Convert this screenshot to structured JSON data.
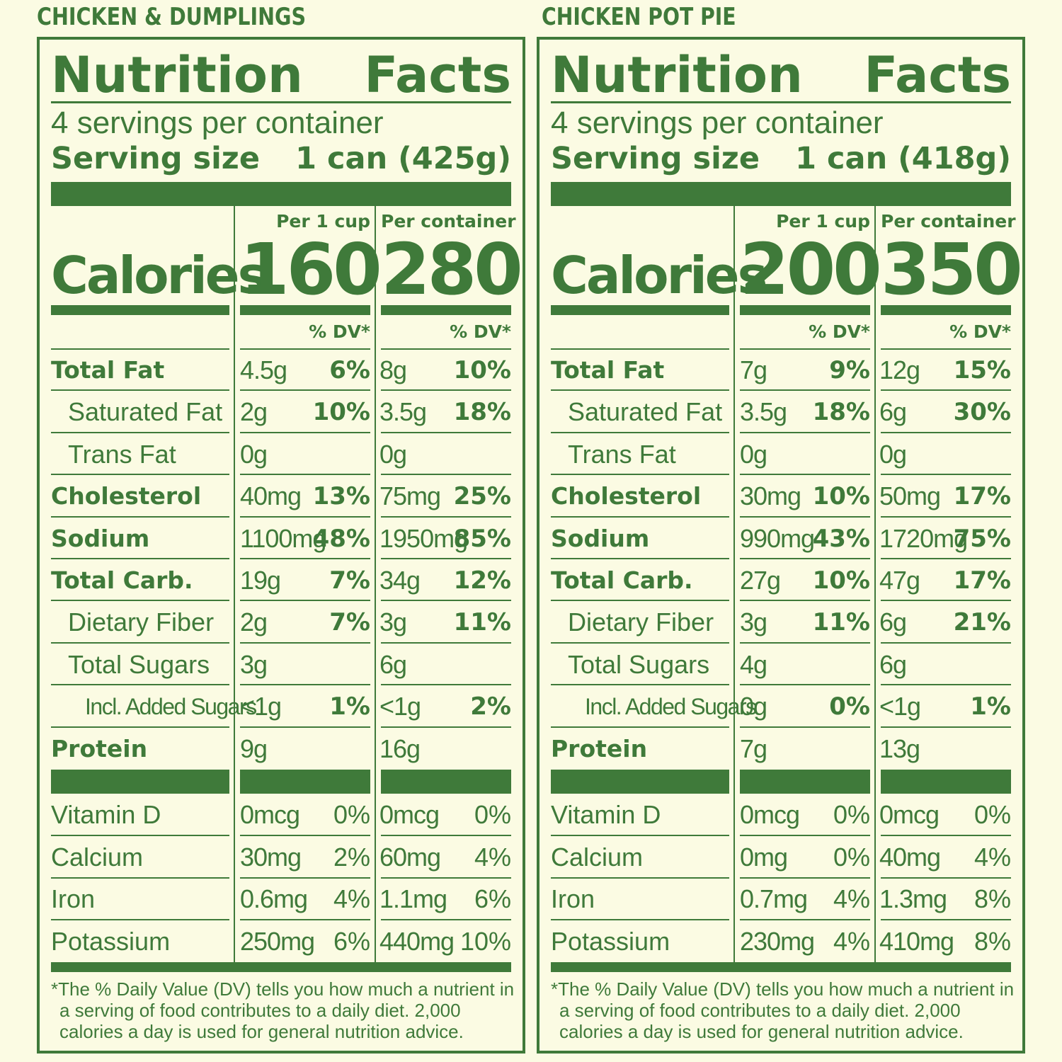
{
  "panels": [
    {
      "product": "CHICKEN & DUMPLINGS",
      "title": "Nutrition Facts",
      "servings": "4 servings per container",
      "serving_size_label": "Serving size",
      "serving_size_value": "1 can (425g)",
      "col1_head": "Per 1 cup",
      "col2_head": "Per container",
      "calories_label": "Calories",
      "calories_1": "160",
      "calories_2": "280",
      "dv_head": "% DV*",
      "rows": [
        {
          "label": "Total Fat",
          "style": "bold",
          "a1": "4.5g",
          "p1": "6%",
          "a2": "8g",
          "p2": "10%"
        },
        {
          "label": "Saturated Fat",
          "style": "ind1",
          "a1": "2g",
          "p1": "10%",
          "a2": "3.5g",
          "p2": "18%"
        },
        {
          "label": "Trans Fat",
          "style": "ind1",
          "a1": "0g",
          "p1": "",
          "a2": "0g",
          "p2": ""
        },
        {
          "label": "Cholesterol",
          "style": "bold",
          "a1": "40mg",
          "p1": "13%",
          "a2": "75mg",
          "p2": "25%"
        },
        {
          "label": "Sodium",
          "style": "bold",
          "a1": "1100mg",
          "p1": "48%",
          "a2": "1950mg",
          "p2": "85%"
        },
        {
          "label": "Total Carb.",
          "style": "bold",
          "a1": "19g",
          "p1": "7%",
          "a2": "34g",
          "p2": "12%"
        },
        {
          "label": "Dietary Fiber",
          "style": "ind1",
          "a1": "2g",
          "p1": "7%",
          "a2": "3g",
          "p2": "11%"
        },
        {
          "label": "Total Sugars",
          "style": "ind1",
          "a1": "3g",
          "p1": "",
          "a2": "6g",
          "p2": ""
        },
        {
          "label": "Incl. Added Sugars",
          "style": "ind2",
          "a1": "<1g",
          "p1": "1%",
          "a2": "<1g",
          "p2": "2%"
        },
        {
          "label": "Protein",
          "style": "bold",
          "a1": "9g",
          "p1": "",
          "a2": "16g",
          "p2": ""
        }
      ],
      "vitamins": [
        {
          "label": "Vitamin D",
          "a1": "0mcg",
          "p1": "0%",
          "a2": "0mcg",
          "p2": "0%"
        },
        {
          "label": "Calcium",
          "a1": "30mg",
          "p1": "2%",
          "a2": "60mg",
          "p2": "4%"
        },
        {
          "label": "Iron",
          "a1": "0.6mg",
          "p1": "4%",
          "a2": "1.1mg",
          "p2": "6%"
        },
        {
          "label": "Potassium",
          "a1": "250mg",
          "p1": "6%",
          "a2": "440mg",
          "p2": "10%"
        }
      ],
      "footnote": [
        "*The % Daily Value (DV) tells you how much a nutrient in",
        "a serving of food contributes to a daily diet. 2,000",
        "calories a day is used for general nutrition advice."
      ]
    },
    {
      "product": "CHICKEN POT PIE",
      "title": "Nutrition Facts",
      "servings": "4 servings per container",
      "serving_size_label": "Serving size",
      "serving_size_value": "1 can (418g)",
      "col1_head": "Per 1 cup",
      "col2_head": "Per container",
      "calories_label": "Calories",
      "calories_1": "200",
      "calories_2": "350",
      "dv_head": "% DV*",
      "rows": [
        {
          "label": "Total Fat",
          "style": "bold",
          "a1": "7g",
          "p1": "9%",
          "a2": "12g",
          "p2": "15%"
        },
        {
          "label": "Saturated Fat",
          "style": "ind1",
          "a1": "3.5g",
          "p1": "18%",
          "a2": "6g",
          "p2": "30%"
        },
        {
          "label": "Trans Fat",
          "style": "ind1",
          "a1": "0g",
          "p1": "",
          "a2": "0g",
          "p2": ""
        },
        {
          "label": "Cholesterol",
          "style": "bold",
          "a1": "30mg",
          "p1": "10%",
          "a2": "50mg",
          "p2": "17%"
        },
        {
          "label": "Sodium",
          "style": "bold",
          "a1": "990mg",
          "p1": "43%",
          "a2": "1720mg",
          "p2": "75%"
        },
        {
          "label": "Total Carb.",
          "style": "bold",
          "a1": "27g",
          "p1": "10%",
          "a2": "47g",
          "p2": "17%"
        },
        {
          "label": "Dietary Fiber",
          "style": "ind1",
          "a1": "3g",
          "p1": "11%",
          "a2": "6g",
          "p2": "21%"
        },
        {
          "label": "Total Sugars",
          "style": "ind1",
          "a1": "4g",
          "p1": "",
          "a2": "6g",
          "p2": ""
        },
        {
          "label": "Incl. Added Sugars",
          "style": "ind2",
          "a1": "0g",
          "p1": "0%",
          "a2": "<1g",
          "p2": "1%"
        },
        {
          "label": "Protein",
          "style": "bold",
          "a1": "7g",
          "p1": "",
          "a2": "13g",
          "p2": ""
        }
      ],
      "vitamins": [
        {
          "label": "Vitamin D",
          "a1": "0mcg",
          "p1": "0%",
          "a2": "0mcg",
          "p2": "0%"
        },
        {
          "label": "Calcium",
          "a1": "0mg",
          "p1": "0%",
          "a2": "40mg",
          "p2": "4%"
        },
        {
          "label": "Iron",
          "a1": "0.7mg",
          "p1": "4%",
          "a2": "1.3mg",
          "p2": "8%"
        },
        {
          "label": "Potassium",
          "a1": "230mg",
          "p1": "4%",
          "a2": "410mg",
          "p2": "8%"
        }
      ],
      "footnote": [
        "*The % Daily Value (DV) tells you how much a nutrient in",
        "a serving of food contributes to a daily diet. 2,000",
        "calories a day is used for general nutrition advice."
      ]
    }
  ]
}
